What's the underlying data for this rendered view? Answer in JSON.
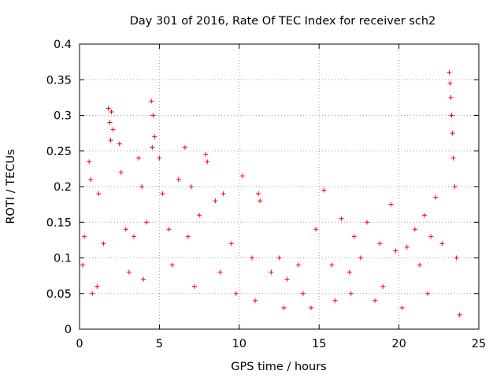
{
  "chart_data": {
    "type": "scatter",
    "title": "Day 301 of 2016, Rate Of TEC Index for receiver sch2",
    "xlabel": "GPS time / hours",
    "ylabel": "ROTI / TECUs",
    "xlim": [
      0,
      25
    ],
    "ylim": [
      0,
      0.4
    ],
    "xticks": [
      "0",
      "5",
      "10",
      "15",
      "20",
      "25"
    ],
    "yticks": [
      "0",
      "0.05",
      "0.1",
      "0.15",
      "0.2",
      "0.25",
      "0.3",
      "0.35",
      "0.4"
    ],
    "grid": true,
    "marker": "+",
    "color": "#ff0000",
    "series": [
      {
        "name": "ROTI",
        "x": [
          1.8,
          1.9,
          2.0,
          2.1,
          1.95,
          4.5,
          4.6,
          4.7,
          4.55,
          6.6,
          7.9,
          8.0,
          8.5,
          10.2,
          15.3,
          19.5,
          22.3,
          23.15,
          23.2,
          23.25,
          23.3,
          23.35,
          23.4,
          23.5,
          0.6,
          0.7,
          0.3,
          1.2,
          2.5,
          2.6,
          3.7,
          3.9,
          5.0,
          5.2,
          6.2,
          7.0,
          9.0,
          11.2,
          11.3,
          12.5,
          13.7,
          14.8,
          16.4,
          17.2,
          18.0,
          18.8,
          20.5,
          21.0,
          21.6,
          22.7,
          0.2,
          1.5,
          2.9,
          3.4,
          4.2,
          5.6,
          6.8,
          7.5,
          9.5,
          10.8,
          12.0,
          13.0,
          14.0,
          15.8,
          16.9,
          17.6,
          19.0,
          19.8,
          21.3,
          22.0,
          23.6,
          0.8,
          1.1,
          3.1,
          4.0,
          5.8,
          7.2,
          8.8,
          9.8,
          11.0,
          12.8,
          14.5,
          16.0,
          17.0,
          18.5,
          20.2,
          21.8,
          23.8
        ],
        "y": [
          0.31,
          0.29,
          0.305,
          0.28,
          0.265,
          0.32,
          0.3,
          0.27,
          0.255,
          0.255,
          0.245,
          0.235,
          0.18,
          0.215,
          0.195,
          0.175,
          0.185,
          0.36,
          0.345,
          0.325,
          0.3,
          0.275,
          0.24,
          0.2,
          0.235,
          0.21,
          0.13,
          0.19,
          0.26,
          0.22,
          0.24,
          0.2,
          0.24,
          0.19,
          0.21,
          0.2,
          0.19,
          0.19,
          0.18,
          0.1,
          0.09,
          0.14,
          0.155,
          0.13,
          0.15,
          0.12,
          0.115,
          0.14,
          0.16,
          0.12,
          0.09,
          0.12,
          0.14,
          0.13,
          0.15,
          0.14,
          0.13,
          0.16,
          0.12,
          0.1,
          0.08,
          0.07,
          0.05,
          0.09,
          0.08,
          0.1,
          0.06,
          0.11,
          0.09,
          0.13,
          0.1,
          0.05,
          0.06,
          0.08,
          0.07,
          0.09,
          0.06,
          0.08,
          0.05,
          0.04,
          0.03,
          0.03,
          0.04,
          0.05,
          0.04,
          0.03,
          0.05,
          0.02
        ]
      }
    ]
  }
}
